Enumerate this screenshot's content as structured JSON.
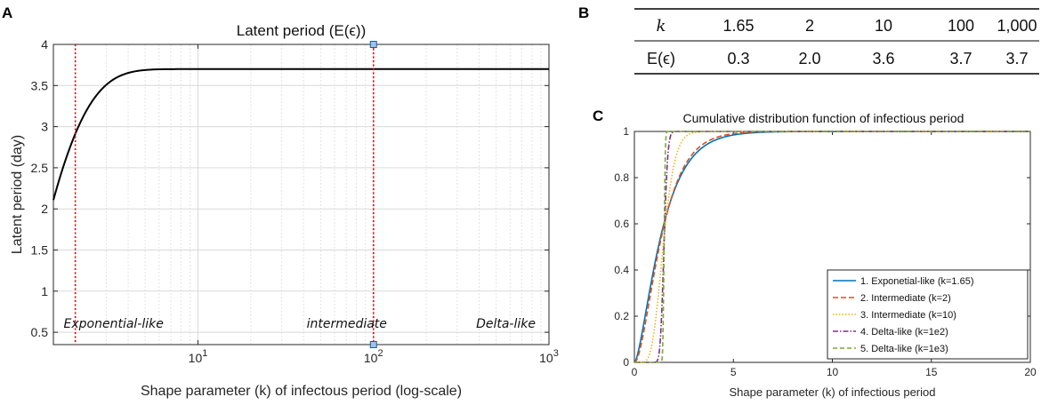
{
  "panel_letters": {
    "a": "A",
    "b": "B",
    "c": "C"
  },
  "chart_data": [
    {
      "type": "line",
      "panel": "A",
      "title": "Latent period (E(ϵ))",
      "xlabel": "Shape parameter (k) of infectous period (log-scale)",
      "ylabel": "Latent period (day)",
      "xscale": "log",
      "xlim": [
        1.5,
        1000
      ],
      "ylim": [
        0.35,
        4
      ],
      "xticks": [
        {
          "value": 10,
          "base": "10",
          "exp": "1"
        },
        {
          "value": 100,
          "base": "10",
          "exp": "2"
        },
        {
          "value": 1000,
          "base": "10",
          "exp": "3"
        }
      ],
      "yticks": [
        0.5,
        1,
        1.5,
        2,
        2.5,
        3,
        3.5,
        4
      ],
      "yticklabels": [
        "0.5",
        "1",
        "1.5",
        "2",
        "2.5",
        "3",
        "3.5",
        "4"
      ],
      "grid": true,
      "series": [
        {
          "name": "E(ϵ)",
          "color": "#000000",
          "model": "saturating",
          "k_min": 1.5,
          "k_max": 1000
        }
      ],
      "vlines": [
        {
          "x": 2,
          "color": "#e00000"
        },
        {
          "x": 100,
          "color": "#e00000"
        }
      ],
      "markers": [
        {
          "x": 100,
          "y": 4
        },
        {
          "x": 100,
          "y": 0.35
        }
      ],
      "region_labels": [
        {
          "text": "Exponential-like",
          "x": 1.6,
          "y": 0.6
        },
        {
          "text": "intermediate",
          "x": 100,
          "y": 0.6
        },
        {
          "text": "Delta-like",
          "x": 900,
          "y": 0.6
        }
      ]
    },
    {
      "type": "table",
      "panel": "B",
      "rows": [
        {
          "header": "k",
          "values": [
            "1.65",
            "2",
            "10",
            "100",
            "1,000"
          ]
        },
        {
          "header": "E(ϵ)",
          "values": [
            "0.3",
            "2.0",
            "3.6",
            "3.7",
            "3.7"
          ]
        }
      ]
    },
    {
      "type": "line",
      "panel": "C",
      "title": "Cumulative distribution function of infectious period",
      "xlabel": "Shape parameter (k) of infectious period",
      "ylabel": "",
      "xlim": [
        0,
        20
      ],
      "ylim": [
        0,
        1
      ],
      "xticks": [
        0,
        5,
        10,
        15,
        20
      ],
      "yticks": [
        0,
        0.2,
        0.4,
        0.6,
        0.8,
        1
      ],
      "yticklabels": [
        "0",
        "0.2",
        "0.4",
        "0.6",
        "0.8",
        "1"
      ],
      "grid": false,
      "mean": 1.5,
      "legend_position": "bottom-right",
      "series": [
        {
          "name": "1. Exponetial-like (k=1.65)",
          "k": 1.65,
          "color": "#0072bd",
          "dash": ""
        },
        {
          "name": "2. Intermediate (k=2)",
          "k": 2,
          "color": "#d95319",
          "dash": "6,3"
        },
        {
          "name": "3. Intermediate (k=10)",
          "k": 10,
          "color": "#edb120",
          "dash": "1.5,2"
        },
        {
          "name": "4. Delta-like (k=1e2)",
          "k": 100,
          "color": "#7e2f8e",
          "dash": "6,2,1.5,2"
        },
        {
          "name": "5. Delta-like (k=1e3)",
          "k": 1000,
          "color": "#77ac30",
          "dash": "5,3"
        }
      ]
    }
  ]
}
